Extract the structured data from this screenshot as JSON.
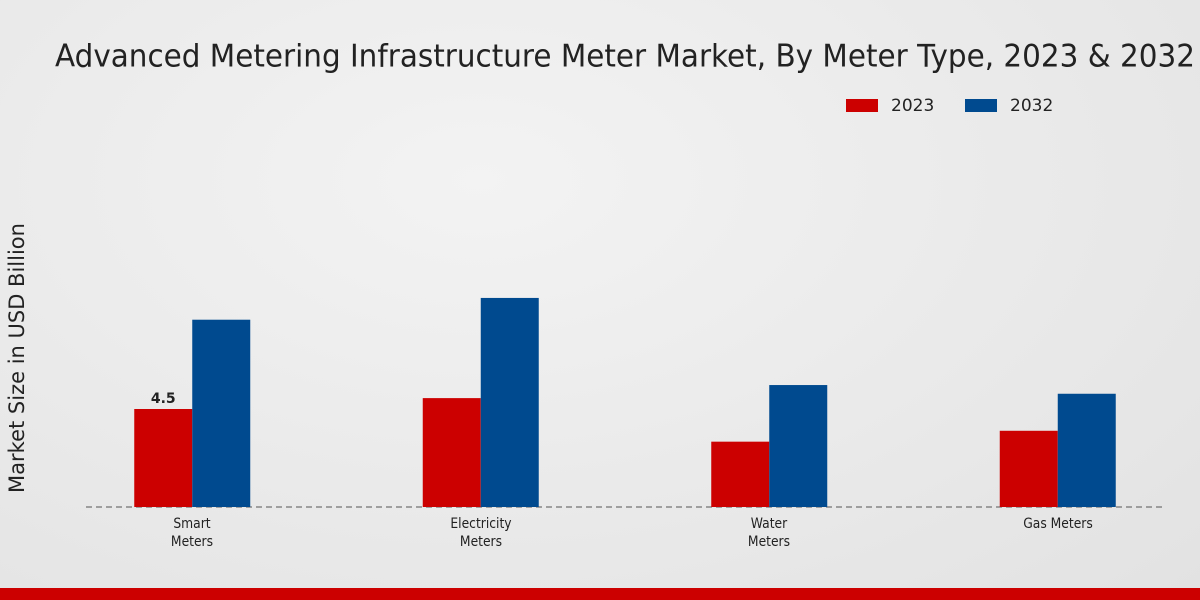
{
  "chart_data": {
    "type": "bar",
    "title": "Advanced Metering Infrastructure Meter Market, By Meter Type, 2023 & 2032",
    "y_axis_label": "Market Size in USD Billion",
    "categories": [
      "Smart Meters",
      "Electricity Meters",
      "Water Meters",
      "Gas Meters"
    ],
    "series": [
      {
        "name": "2023",
        "color": "#cc0000",
        "values": [
          4.5,
          5.0,
          3.0,
          3.5
        ]
      },
      {
        "name": "2032",
        "color": "#004a8f",
        "values": [
          8.6,
          9.6,
          5.6,
          5.2
        ]
      }
    ],
    "ylim": [
      0,
      18
    ]
  }
}
